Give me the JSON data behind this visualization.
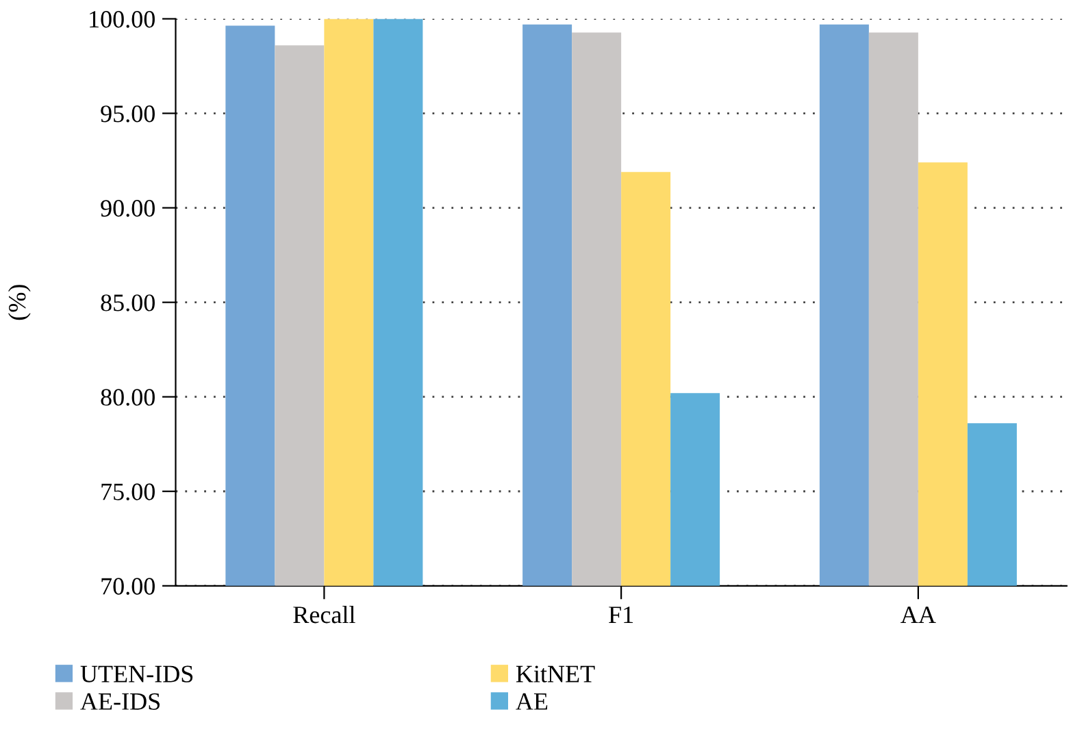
{
  "chart_data": {
    "type": "bar",
    "ylabel": "(%)",
    "categories": [
      "Recall",
      "F1",
      "AA"
    ],
    "series": [
      {
        "name": "UTEN-IDS",
        "color": "#74a6d6",
        "values": [
          99.64,
          99.7,
          99.7
        ]
      },
      {
        "name": "AE-IDS",
        "color": "#c9c6c5",
        "values": [
          98.6,
          99.28,
          99.28
        ]
      },
      {
        "name": "KitNET",
        "color": "#fedb6b",
        "values": [
          100,
          91.9,
          92.4
        ]
      },
      {
        "name": "AE",
        "color": "#5eb0da",
        "values": [
          100,
          80.2,
          78.6
        ]
      }
    ],
    "ylim": [
      70,
      100
    ],
    "yticks": [
      {
        "value": 70,
        "label": "70.00"
      },
      {
        "value": 75,
        "label": "75.00"
      },
      {
        "value": 80,
        "label": "80.00"
      },
      {
        "value": 85,
        "label": "85.00"
      },
      {
        "value": 90,
        "label": "90.00"
      },
      {
        "value": 95,
        "label": "95.00"
      },
      {
        "value": 100,
        "label": "100.00"
      }
    ],
    "grid": "y",
    "legend": "bottom"
  }
}
